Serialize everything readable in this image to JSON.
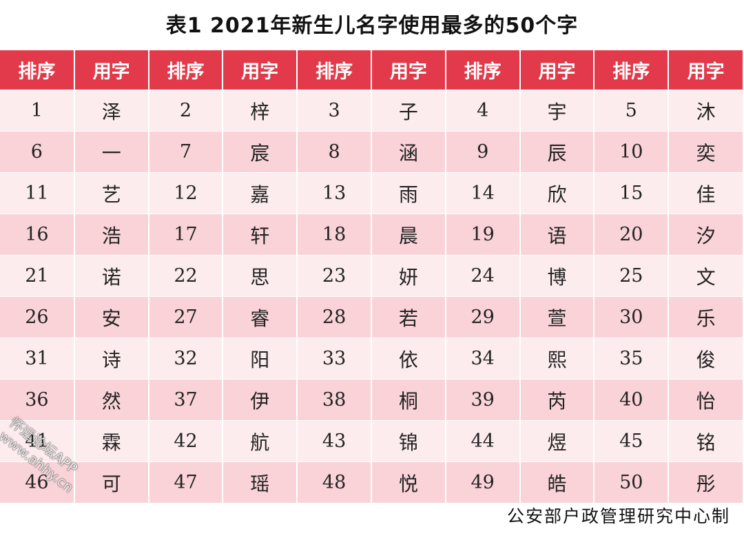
{
  "title": "表1  2021年新生儿名字使用最多的50个字",
  "headers": [
    "排序",
    "用字",
    "排序",
    "用字",
    "排序",
    "用字",
    "排序",
    "用字",
    "排序",
    "用字"
  ],
  "rows": [
    [
      "1",
      "泽",
      "2",
      "梓",
      "3",
      "子",
      "4",
      "宇",
      "5",
      "沐"
    ],
    [
      "6",
      "一",
      "7",
      "宸",
      "8",
      "涵",
      "9",
      "辰",
      "10",
      "奕"
    ],
    [
      "11",
      "艺",
      "12",
      "嘉",
      "13",
      "雨",
      "14",
      "欣",
      "15",
      "佳"
    ],
    [
      "16",
      "浩",
      "17",
      "轩",
      "18",
      "晨",
      "19",
      "语",
      "20",
      "汐"
    ],
    [
      "21",
      "诺",
      "22",
      "思",
      "23",
      "妍",
      "24",
      "博",
      "25",
      "文"
    ],
    [
      "26",
      "安",
      "27",
      "睿",
      "28",
      "若",
      "29",
      "萱",
      "30",
      "乐"
    ],
    [
      "31",
      "诗",
      "32",
      "阳",
      "33",
      "依",
      "34",
      "熙",
      "35",
      "俊"
    ],
    [
      "36",
      "然",
      "37",
      "伊",
      "38",
      "桐",
      "39",
      "芮",
      "40",
      "怡"
    ],
    [
      "41",
      "霖",
      "42",
      "航",
      "43",
      "锦",
      "44",
      "煜",
      "45",
      "铭"
    ],
    [
      "46",
      "可",
      "47",
      "瑶",
      "48",
      "悦",
      "49",
      "皓",
      "50",
      "彤"
    ]
  ],
  "source": "公安部户政管理研究中心制",
  "watermark": {
    "line1": "怀远论坛APP",
    "line2": "www.ahhy.cn"
  },
  "colors": {
    "header_bg": "#e23a4a",
    "row_light": "#fdecee",
    "row_dark": "#f9d3d8"
  }
}
